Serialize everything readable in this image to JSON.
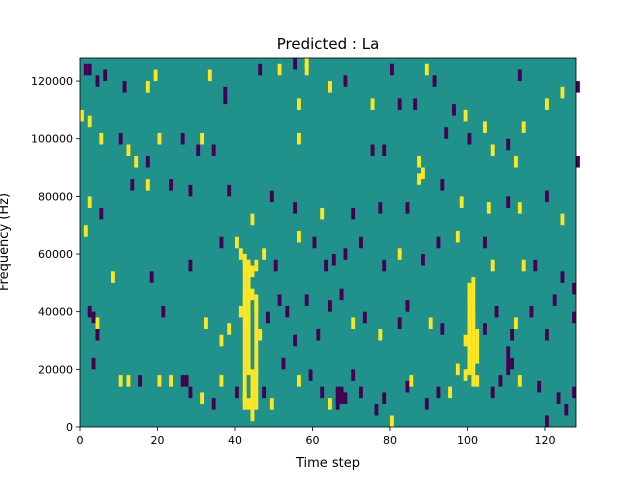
{
  "chart_data": {
    "type": "heatmap",
    "title": "Predicted : La",
    "xlabel": "Time step",
    "ylabel": "Frequency (Hz)",
    "xlim": [
      0,
      128
    ],
    "ylim": [
      0,
      128000
    ],
    "xticks": [
      0,
      20,
      40,
      60,
      80,
      100,
      120
    ],
    "xtick_labels": [
      "0",
      "20",
      "40",
      "60",
      "80",
      "100",
      "120"
    ],
    "yticks": [
      0,
      20000,
      40000,
      60000,
      80000,
      100000,
      120000
    ],
    "ytick_labels": [
      "0",
      "20000",
      "40000",
      "60000",
      "80000",
      "100000",
      "120000"
    ],
    "grid": false,
    "colormap": "viridis",
    "colors": {
      "background": "#21918c",
      "high": "#fde725",
      "low": "#440154"
    },
    "cells": [
      {
        "t": 1,
        "f": 124000,
        "v": "low"
      },
      {
        "t": 2,
        "f": 124000,
        "v": "low"
      },
      {
        "t": 4,
        "f": 120000,
        "v": "low"
      },
      {
        "t": 6,
        "f": 122000,
        "v": "low"
      },
      {
        "t": 11,
        "f": 118000,
        "v": "low"
      },
      {
        "t": 19,
        "f": 122000,
        "v": "high"
      },
      {
        "t": 17,
        "f": 118000,
        "v": "high"
      },
      {
        "t": 33,
        "f": 122000,
        "v": "high"
      },
      {
        "t": 37,
        "f": 116000,
        "v": "low"
      },
      {
        "t": 37,
        "f": 114000,
        "v": "low"
      },
      {
        "t": 46,
        "f": 124000,
        "v": "low"
      },
      {
        "t": 51,
        "f": 124000,
        "v": "high"
      },
      {
        "t": 55,
        "f": 126000,
        "v": "low"
      },
      {
        "t": 58,
        "f": 126000,
        "v": "high"
      },
      {
        "t": 58,
        "f": 124000,
        "v": "high"
      },
      {
        "t": 64,
        "f": 118000,
        "v": "high"
      },
      {
        "t": 68,
        "f": 120000,
        "v": "low"
      },
      {
        "t": 80,
        "f": 124000,
        "v": "low"
      },
      {
        "t": 89,
        "f": 124000,
        "v": "high"
      },
      {
        "t": 91,
        "f": 120000,
        "v": "low"
      },
      {
        "t": 113,
        "f": 122000,
        "v": "low"
      },
      {
        "t": 120,
        "f": 112000,
        "v": "high"
      },
      {
        "t": 124,
        "f": 116000,
        "v": "high"
      },
      {
        "t": 128,
        "f": 118000,
        "v": "low"
      },
      {
        "t": 0,
        "f": 108000,
        "v": "high"
      },
      {
        "t": 2,
        "f": 106000,
        "v": "high"
      },
      {
        "t": 5,
        "f": 100000,
        "v": "high"
      },
      {
        "t": 10,
        "f": 100000,
        "v": "low"
      },
      {
        "t": 12,
        "f": 96000,
        "v": "high"
      },
      {
        "t": 14,
        "f": 92000,
        "v": "high"
      },
      {
        "t": 17,
        "f": 92000,
        "v": "low"
      },
      {
        "t": 20,
        "f": 100000,
        "v": "high"
      },
      {
        "t": 26,
        "f": 100000,
        "v": "low"
      },
      {
        "t": 30,
        "f": 96000,
        "v": "low"
      },
      {
        "t": 31,
        "f": 100000,
        "v": "high"
      },
      {
        "t": 34,
        "f": 96000,
        "v": "low"
      },
      {
        "t": 56,
        "f": 112000,
        "v": "high"
      },
      {
        "t": 56,
        "f": 100000,
        "v": "high"
      },
      {
        "t": 75,
        "f": 112000,
        "v": "high"
      },
      {
        "t": 75,
        "f": 96000,
        "v": "low"
      },
      {
        "t": 78,
        "f": 96000,
        "v": "low"
      },
      {
        "t": 82,
        "f": 112000,
        "v": "low"
      },
      {
        "t": 86,
        "f": 112000,
        "v": "low"
      },
      {
        "t": 87,
        "f": 92000,
        "v": "high"
      },
      {
        "t": 88,
        "f": 88000,
        "v": "high"
      },
      {
        "t": 94,
        "f": 102000,
        "v": "low"
      },
      {
        "t": 96,
        "f": 110000,
        "v": "low"
      },
      {
        "t": 99,
        "f": 108000,
        "v": "high"
      },
      {
        "t": 100,
        "f": 100000,
        "v": "low"
      },
      {
        "t": 104,
        "f": 104000,
        "v": "high"
      },
      {
        "t": 106,
        "f": 96000,
        "v": "high"
      },
      {
        "t": 110,
        "f": 98000,
        "v": "low"
      },
      {
        "t": 114,
        "f": 104000,
        "v": "high"
      },
      {
        "t": 112,
        "f": 92000,
        "v": "high"
      },
      {
        "t": 128,
        "f": 92000,
        "v": "low"
      },
      {
        "t": 2,
        "f": 78000,
        "v": "high"
      },
      {
        "t": 5,
        "f": 74000,
        "v": "low"
      },
      {
        "t": 13,
        "f": 84000,
        "v": "low"
      },
      {
        "t": 17,
        "f": 84000,
        "v": "high"
      },
      {
        "t": 23,
        "f": 84000,
        "v": "low"
      },
      {
        "t": 28,
        "f": 82000,
        "v": "low"
      },
      {
        "t": 38,
        "f": 82000,
        "v": "low"
      },
      {
        "t": 44,
        "f": 72000,
        "v": "high"
      },
      {
        "t": 49,
        "f": 80000,
        "v": "low"
      },
      {
        "t": 55,
        "f": 76000,
        "v": "low"
      },
      {
        "t": 62,
        "f": 74000,
        "v": "high"
      },
      {
        "t": 70,
        "f": 74000,
        "v": "low"
      },
      {
        "t": 77,
        "f": 76000,
        "v": "low"
      },
      {
        "t": 84,
        "f": 76000,
        "v": "low"
      },
      {
        "t": 87,
        "f": 86000,
        "v": "high"
      },
      {
        "t": 93,
        "f": 84000,
        "v": "low"
      },
      {
        "t": 98,
        "f": 78000,
        "v": "high"
      },
      {
        "t": 105,
        "f": 76000,
        "v": "high"
      },
      {
        "t": 110,
        "f": 78000,
        "v": "low"
      },
      {
        "t": 113,
        "f": 76000,
        "v": "high"
      },
      {
        "t": 120,
        "f": 80000,
        "v": "low"
      },
      {
        "t": 124,
        "f": 72000,
        "v": "high"
      },
      {
        "t": 1,
        "f": 68000,
        "v": "high"
      },
      {
        "t": 8,
        "f": 52000,
        "v": "high"
      },
      {
        "t": 18,
        "f": 52000,
        "v": "low"
      },
      {
        "t": 28,
        "f": 56000,
        "v": "low"
      },
      {
        "t": 36,
        "f": 64000,
        "v": "low"
      },
      {
        "t": 40,
        "f": 64000,
        "v": "high"
      },
      {
        "t": 41,
        "f": 60000,
        "v": "high"
      },
      {
        "t": 42,
        "f": 58000,
        "v": "high"
      },
      {
        "t": 43,
        "f": 56000,
        "v": "high"
      },
      {
        "t": 44,
        "f": 54000,
        "v": "high"
      },
      {
        "t": 45,
        "f": 56000,
        "v": "high"
      },
      {
        "t": 47,
        "f": 60000,
        "v": "high"
      },
      {
        "t": 50,
        "f": 56000,
        "v": "low"
      },
      {
        "t": 56,
        "f": 66000,
        "v": "high"
      },
      {
        "t": 60,
        "f": 64000,
        "v": "low"
      },
      {
        "t": 63,
        "f": 56000,
        "v": "low"
      },
      {
        "t": 65,
        "f": 58000,
        "v": "low"
      },
      {
        "t": 68,
        "f": 60000,
        "v": "low"
      },
      {
        "t": 72,
        "f": 64000,
        "v": "low"
      },
      {
        "t": 78,
        "f": 56000,
        "v": "low"
      },
      {
        "t": 82,
        "f": 60000,
        "v": "high"
      },
      {
        "t": 88,
        "f": 58000,
        "v": "low"
      },
      {
        "t": 92,
        "f": 64000,
        "v": "low"
      },
      {
        "t": 97,
        "f": 66000,
        "v": "high"
      },
      {
        "t": 104,
        "f": 64000,
        "v": "low"
      },
      {
        "t": 106,
        "f": 56000,
        "v": "high"
      },
      {
        "t": 114,
        "f": 56000,
        "v": "high"
      },
      {
        "t": 117,
        "f": 56000,
        "v": "low"
      },
      {
        "t": 124,
        "f": 52000,
        "v": "low"
      },
      {
        "t": 127,
        "f": 48000,
        "v": "low"
      },
      {
        "t": 2,
        "f": 40000,
        "v": "low"
      },
      {
        "t": 3,
        "f": 38000,
        "v": "low"
      },
      {
        "t": 4,
        "f": 36000,
        "v": "high"
      },
      {
        "t": 4,
        "f": 32000,
        "v": "low"
      },
      {
        "t": 21,
        "f": 40000,
        "v": "low"
      },
      {
        "t": 32,
        "f": 36000,
        "v": "high"
      },
      {
        "t": 36,
        "f": 30000,
        "v": "high"
      },
      {
        "t": 38,
        "f": 34000,
        "v": "high"
      },
      {
        "t": 41,
        "f": 40000,
        "v": "high"
      },
      {
        "t": 42,
        "f": 44000,
        "v": "high"
      },
      {
        "t": 43,
        "f": 36000,
        "v": "high"
      },
      {
        "t": 44,
        "f": 46000,
        "v": "high"
      },
      {
        "t": 45,
        "f": 42000,
        "v": "high"
      },
      {
        "t": 46,
        "f": 32000,
        "v": "high"
      },
      {
        "t": 48,
        "f": 38000,
        "v": "low"
      },
      {
        "t": 51,
        "f": 44000,
        "v": "low"
      },
      {
        "t": 53,
        "f": 40000,
        "v": "low"
      },
      {
        "t": 55,
        "f": 30000,
        "v": "low"
      },
      {
        "t": 58,
        "f": 44000,
        "v": "low"
      },
      {
        "t": 61,
        "f": 32000,
        "v": "low"
      },
      {
        "t": 64,
        "f": 42000,
        "v": "low"
      },
      {
        "t": 67,
        "f": 46000,
        "v": "low"
      },
      {
        "t": 70,
        "f": 36000,
        "v": "high"
      },
      {
        "t": 73,
        "f": 38000,
        "v": "low"
      },
      {
        "t": 77,
        "f": 32000,
        "v": "high"
      },
      {
        "t": 82,
        "f": 36000,
        "v": "low"
      },
      {
        "t": 84,
        "f": 42000,
        "v": "low"
      },
      {
        "t": 90,
        "f": 36000,
        "v": "high"
      },
      {
        "t": 93,
        "f": 34000,
        "v": "low"
      },
      {
        "t": 99,
        "f": 30000,
        "v": "high"
      },
      {
        "t": 100,
        "f": 44000,
        "v": "high"
      },
      {
        "t": 101,
        "f": 38000,
        "v": "high"
      },
      {
        "t": 101,
        "f": 26000,
        "v": "high"
      },
      {
        "t": 104,
        "f": 34000,
        "v": "low"
      },
      {
        "t": 107,
        "f": 40000,
        "v": "low"
      },
      {
        "t": 111,
        "f": 32000,
        "v": "low"
      },
      {
        "t": 112,
        "f": 36000,
        "v": "high"
      },
      {
        "t": 116,
        "f": 40000,
        "v": "low"
      },
      {
        "t": 120,
        "f": 32000,
        "v": "low"
      },
      {
        "t": 122,
        "f": 44000,
        "v": "low"
      },
      {
        "t": 127,
        "f": 38000,
        "v": "low"
      },
      {
        "t": 3,
        "f": 22000,
        "v": "low"
      },
      {
        "t": 10,
        "f": 16000,
        "v": "high"
      },
      {
        "t": 12,
        "f": 16000,
        "v": "high"
      },
      {
        "t": 15,
        "f": 16000,
        "v": "low"
      },
      {
        "t": 20,
        "f": 16000,
        "v": "high"
      },
      {
        "t": 23,
        "f": 16000,
        "v": "high"
      },
      {
        "t": 26,
        "f": 16000,
        "v": "low"
      },
      {
        "t": 27,
        "f": 16000,
        "v": "low"
      },
      {
        "t": 28,
        "f": 12000,
        "v": "low"
      },
      {
        "t": 31,
        "f": 10000,
        "v": "high"
      },
      {
        "t": 34,
        "f": 8000,
        "v": "low"
      },
      {
        "t": 36,
        "f": 16000,
        "v": "high"
      },
      {
        "t": 40,
        "f": 12000,
        "v": "low"
      },
      {
        "t": 42,
        "f": 10000,
        "v": "high"
      },
      {
        "t": 43,
        "f": 8000,
        "v": "high"
      },
      {
        "t": 44,
        "f": 14000,
        "v": "high"
      },
      {
        "t": 45,
        "f": 20000,
        "v": "high"
      },
      {
        "t": 47,
        "f": 12000,
        "v": "low"
      },
      {
        "t": 49,
        "f": 8000,
        "v": "high"
      },
      {
        "t": 52,
        "f": 22000,
        "v": "low"
      },
      {
        "t": 56,
        "f": 16000,
        "v": "high"
      },
      {
        "t": 59,
        "f": 18000,
        "v": "low"
      },
      {
        "t": 62,
        "f": 12000,
        "v": "low"
      },
      {
        "t": 64,
        "f": 8000,
        "v": "high"
      },
      {
        "t": 66,
        "f": 8000,
        "v": "low"
      },
      {
        "t": 68,
        "f": 10000,
        "v": "low"
      },
      {
        "t": 70,
        "f": 18000,
        "v": "low"
      },
      {
        "t": 72,
        "f": 12000,
        "v": "low"
      },
      {
        "t": 76,
        "f": 6000,
        "v": "low"
      },
      {
        "t": 78,
        "f": 10000,
        "v": "low"
      },
      {
        "t": 80,
        "f": 2000,
        "v": "high"
      },
      {
        "t": 84,
        "f": 14000,
        "v": "low"
      },
      {
        "t": 85,
        "f": 16000,
        "v": "high"
      },
      {
        "t": 89,
        "f": 8000,
        "v": "low"
      },
      {
        "t": 92,
        "f": 12000,
        "v": "low"
      },
      {
        "t": 95,
        "f": 12000,
        "v": "high"
      },
      {
        "t": 97,
        "f": 20000,
        "v": "high"
      },
      {
        "t": 99,
        "f": 18000,
        "v": "high"
      },
      {
        "t": 102,
        "f": 16000,
        "v": "high"
      },
      {
        "t": 106,
        "f": 12000,
        "v": "low"
      },
      {
        "t": 108,
        "f": 16000,
        "v": "low"
      },
      {
        "t": 111,
        "f": 22000,
        "v": "low"
      },
      {
        "t": 113,
        "f": 16000,
        "v": "high"
      },
      {
        "t": 118,
        "f": 14000,
        "v": "low"
      },
      {
        "t": 120,
        "f": 2000,
        "v": "low"
      },
      {
        "t": 123,
        "f": 10000,
        "v": "low"
      },
      {
        "t": 125,
        "f": 6000,
        "v": "low"
      },
      {
        "t": 127,
        "f": 12000,
        "v": "low"
      }
    ],
    "bands": [
      {
        "t": 42,
        "t_span": 1,
        "f0": 6000,
        "f1": 60000,
        "v": "high"
      },
      {
        "t": 43,
        "t_span": 1,
        "f0": 18000,
        "f1": 58000,
        "v": "high"
      },
      {
        "t": 44,
        "t_span": 1,
        "f0": 2000,
        "f1": 20000,
        "v": "high"
      },
      {
        "t": 45,
        "t_span": 1,
        "f0": 6000,
        "f1": 46000,
        "v": "high"
      },
      {
        "t": 66,
        "t_span": 2,
        "f0": 8000,
        "f1": 14000,
        "v": "low"
      },
      {
        "t": 100,
        "t_span": 1,
        "f0": 18000,
        "f1": 50000,
        "v": "high"
      },
      {
        "t": 101,
        "t_span": 1,
        "f0": 14000,
        "f1": 52000,
        "v": "high"
      },
      {
        "t": 102,
        "t_span": 1,
        "f0": 22000,
        "f1": 34000,
        "v": "high"
      },
      {
        "t": 110,
        "t_span": 1,
        "f0": 18000,
        "f1": 28000,
        "v": "low"
      }
    ]
  }
}
